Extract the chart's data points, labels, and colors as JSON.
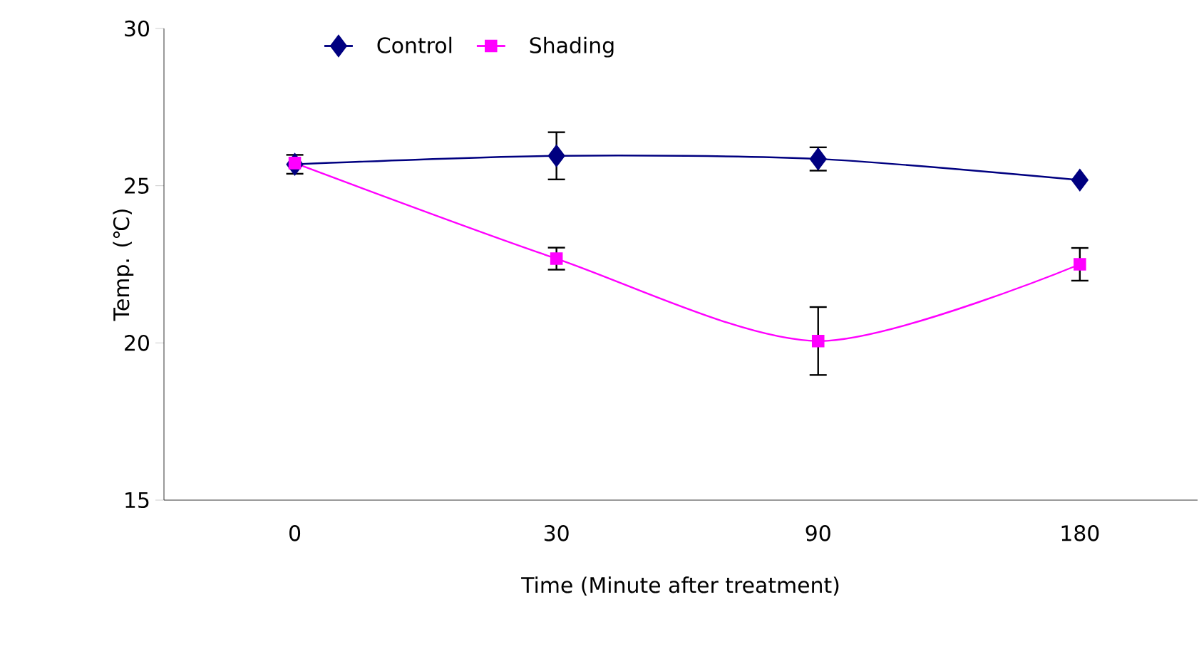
{
  "chart_data": {
    "type": "line",
    "xlabel": "Time (Minute after treatment)",
    "ylabel": "Temp. (℃)",
    "categories": [
      "0",
      "30",
      "90",
      "180"
    ],
    "ylim": [
      15,
      30
    ],
    "yticks": [
      15,
      20,
      25,
      30
    ],
    "legend": "top",
    "grid": false,
    "series": [
      {
        "name": "Control",
        "color": "#000080",
        "marker": "diamond",
        "values": [
          25.68,
          25.95,
          25.85,
          25.18
        ],
        "errors": [
          0.3,
          0.75,
          0.37,
          null
        ]
      },
      {
        "name": "Shading",
        "color": "#ff00ff",
        "marker": "square",
        "values": [
          25.72,
          22.68,
          20.06,
          22.5
        ],
        "errors": [
          null,
          0.35,
          1.08,
          0.52
        ]
      }
    ]
  }
}
